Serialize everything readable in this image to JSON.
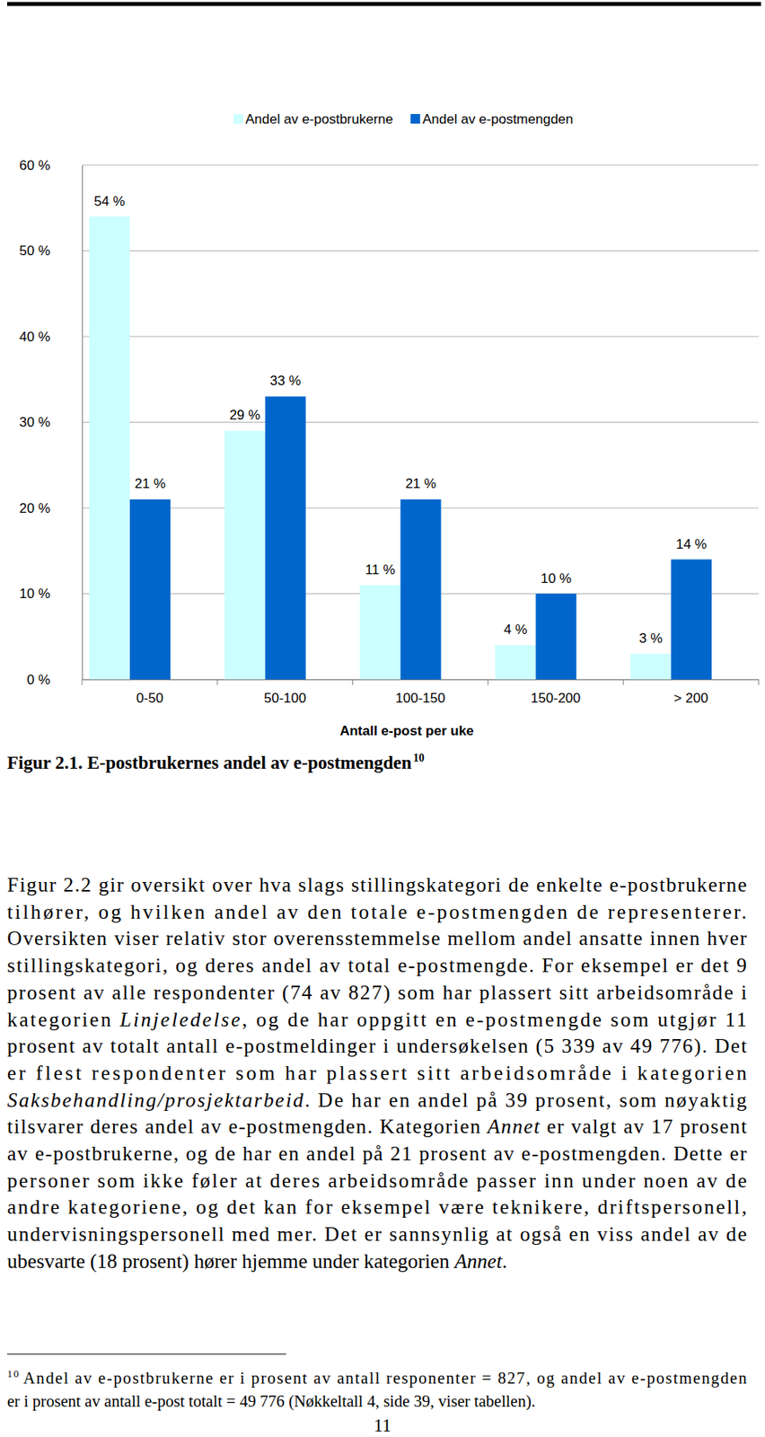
{
  "chart_data": {
    "type": "bar",
    "categories": [
      "0-50",
      "50-100",
      "100-150",
      "150-200",
      "> 200"
    ],
    "series": [
      {
        "name": "Andel av e-postbrukerne",
        "color": "#ccffff",
        "values": [
          54,
          29,
          11,
          4,
          3
        ],
        "value_labels": [
          "54 %",
          "29 %",
          "11 %",
          "4 %",
          "3 %"
        ]
      },
      {
        "name": "Andel av e-postmengden",
        "color": "#0066cc",
        "values": [
          21,
          33,
          21,
          10,
          14
        ],
        "value_labels": [
          "21 %",
          "33 %",
          "21 %",
          "10 %",
          "14 %"
        ]
      }
    ],
    "x_label": "Antall e-post per uke",
    "ylim": [
      0,
      60
    ],
    "yticks": [
      {
        "value": 0,
        "label": "0 %"
      },
      {
        "value": 10,
        "label": "10 %"
      },
      {
        "value": 20,
        "label": "20 %"
      },
      {
        "value": 30,
        "label": "30 %"
      },
      {
        "value": 40,
        "label": "40 %"
      },
      {
        "value": 50,
        "label": "50 %"
      },
      {
        "value": 60,
        "label": "60 %"
      }
    ],
    "grid": true,
    "legend": "top",
    "data_labels": true
  },
  "caption": {
    "text": "Figur 2.1. E-postbrukernes andel av e-postmengden",
    "note_ref": "10"
  },
  "body": {
    "lines": [
      [
        "Figur 2.2 gir oversikt over hva slags stillingskategori de enkelte e-postbrukerne"
      ],
      [
        "tilhører, og hvilken andel av den totale e-postmengden de representerer."
      ],
      [
        "Oversikten viser relativ stor overensstemmelse mellom andel ansatte innen hver"
      ],
      [
        "stillingskategori, og deres andel av total e-postmengde. For eksempel er det 9"
      ],
      [
        "prosent av alle respondenter (74 av 827) som har plassert sitt arbeidsområde i"
      ],
      [
        "kategorien ",
        {
          "italic": "Linjeledelse"
        },
        ", og de har oppgitt en e-postmengde som utgjør 11"
      ],
      [
        "prosent av totalt antall e-postmeldinger i undersøkelsen (5 339 av 49 776). Det"
      ],
      [
        "er flest respondenter som har plassert sitt arbeidsområde i kategorien"
      ],
      [
        {
          "italic": "Saksbehandling/prosjektarbeid"
        },
        ". De har en andel på 39 prosent, som nøyaktig"
      ],
      [
        "tilsvarer deres andel av e-postmengden. Kategorien ",
        {
          "italic": "Annet"
        },
        " er valgt av 17 prosent"
      ],
      [
        "av e-postbrukerne, og de har en andel på 21 prosent av e-postmengden. Dette er"
      ],
      [
        "personer som ikke føler at deres arbeidsområde passer inn under noen av de"
      ],
      [
        "andre kategoriene, og det kan for eksempel være teknikere, driftspersonell,"
      ],
      [
        "undervisningspersonell med mer. Det er sannsynlig at også en viss andel av de"
      ],
      [
        "ubesvarte (18 prosent) hører hjemme under kategorien ",
        {
          "italic": "Annet"
        },
        "."
      ]
    ]
  },
  "footnote": {
    "number": "10",
    "lines": [
      "Andel av e-postbrukerne er i prosent av antall responenter = 827, og andel av e-postmengden",
      "er i prosent av antall e-post totalt = 49 776 (Nøkkeltall 4, side 39, viser tabellen)."
    ]
  },
  "page_number": "11"
}
